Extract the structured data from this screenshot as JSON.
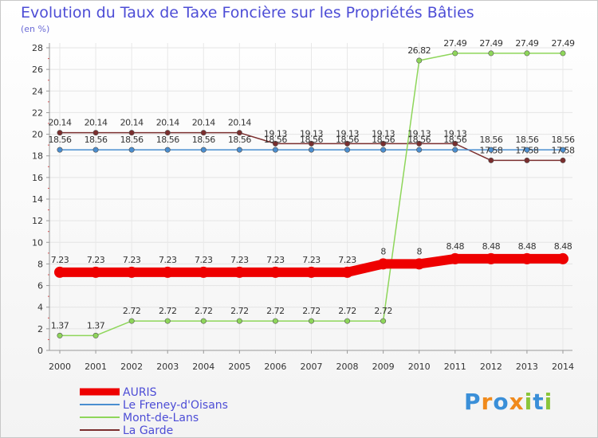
{
  "chart_data": {
    "type": "line",
    "title": "Evolution du Taux de Taxe Foncière sur les Propriétés Bâties",
    "subtitle": "(en %)",
    "xlabel": "",
    "ylabel": "",
    "ylim": [
      0,
      28
    ],
    "y_ticks": [
      "0",
      "2",
      "4",
      "6",
      "8",
      "10",
      "12",
      "14",
      "16",
      "18",
      "20",
      "22",
      "24",
      "26",
      "28"
    ],
    "categories": [
      "2000",
      "2001",
      "2002",
      "2003",
      "2004",
      "2005",
      "2006",
      "2007",
      "2008",
      "2009",
      "2010",
      "2011",
      "2012",
      "2013",
      "2014"
    ],
    "legend_position": "bottom-left",
    "series": [
      {
        "name": "AURIS",
        "color": "#ee0000",
        "values": [
          7.23,
          7.23,
          7.23,
          7.23,
          7.23,
          7.23,
          7.23,
          7.23,
          7.23,
          8,
          8,
          8.48,
          8.48,
          8.48,
          8.48
        ],
        "labels": [
          "7.23",
          "7.23",
          "7.23",
          "7.23",
          "7.23",
          "7.23",
          "7.23",
          "7.23",
          "7.23",
          "8",
          "8",
          "8.48",
          "8.48",
          "8.48",
          "8.48"
        ]
      },
      {
        "name": "Le Freney-d'Oisans",
        "color": "#4a8ed0",
        "values": [
          18.56,
          18.56,
          18.56,
          18.56,
          18.56,
          18.56,
          18.56,
          18.56,
          18.56,
          18.56,
          18.56,
          18.56,
          18.56,
          18.56,
          18.56
        ],
        "labels": [
          "18.56",
          "18.56",
          "18.56",
          "18.56",
          "18.56",
          "18.56",
          "18.56",
          "18.56",
          "18.56",
          "18.56",
          "18.56",
          "18.56",
          "18.56",
          "18.56",
          "18.56"
        ]
      },
      {
        "name": "Mont-de-Lans",
        "color": "#8ed65a",
        "values": [
          1.37,
          1.37,
          2.72,
          2.72,
          2.72,
          2.72,
          2.72,
          2.72,
          2.72,
          2.72,
          26.82,
          27.49,
          27.49,
          27.49,
          27.49
        ],
        "labels": [
          "1.37",
          "1.37",
          "2.72",
          "2.72",
          "2.72",
          "2.72",
          "2.72",
          "2.72",
          "2.72",
          "2.72",
          "26.82",
          "27.49",
          "27.49",
          "27.49",
          "27.49"
        ]
      },
      {
        "name": "La Garde",
        "color": "#7a2e2e",
        "values": [
          20.14,
          20.14,
          20.14,
          20.14,
          20.14,
          20.14,
          19.13,
          19.13,
          19.13,
          19.13,
          19.13,
          19.13,
          17.58,
          17.58,
          17.58
        ],
        "labels": [
          "20.14",
          "20.14",
          "20.14",
          "20.14",
          "20.14",
          "20.14",
          "19.13",
          "19.13",
          "19.13",
          "19.13",
          "19.13",
          "19.13",
          "17.58",
          "17.58",
          "17.58"
        ]
      }
    ]
  },
  "logo": {
    "letters": [
      "P",
      "r",
      "o",
      "x",
      "i",
      "t",
      "i"
    ],
    "colors": [
      "#3a8fd8",
      "#f08a1c",
      "#3a8fd8",
      "#f08a1c",
      "#8ac53a",
      "#3a8fd8",
      "#8ac53a"
    ]
  }
}
